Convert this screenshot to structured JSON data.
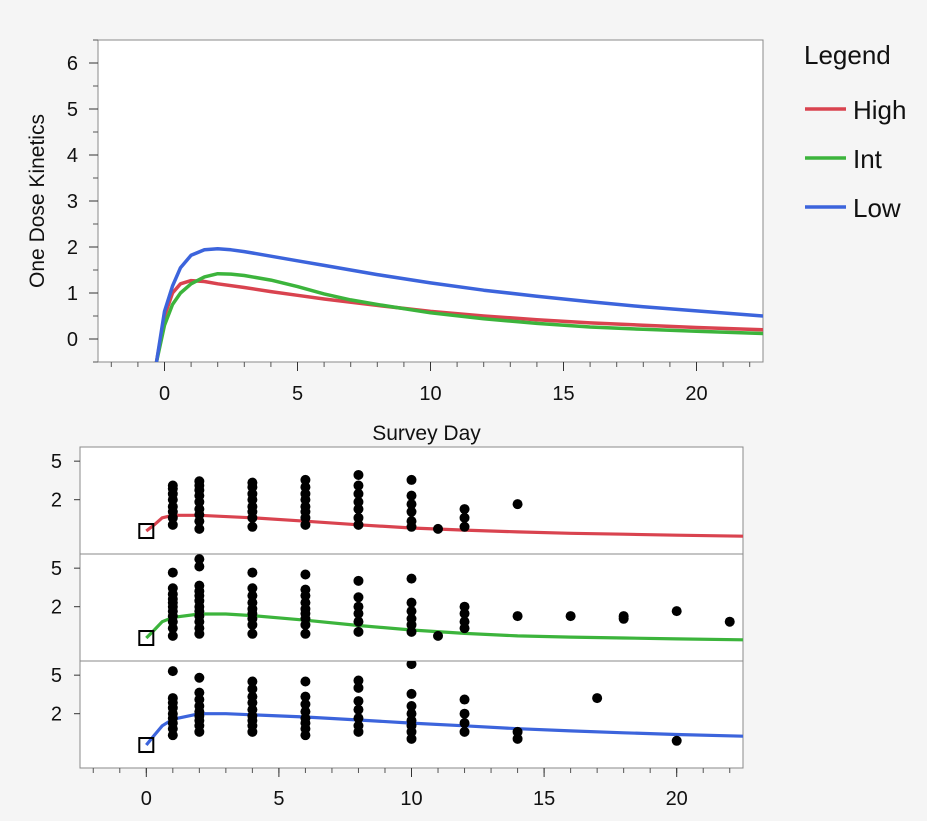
{
  "colors": {
    "High": "#d9434f",
    "Int": "#3cb43c",
    "Low": "#3c64dc",
    "background": "#f5f5f5",
    "plot": "#ffffff"
  },
  "chart_data": [
    {
      "type": "line",
      "xlabel": "Survey Day",
      "ylabel": "One Dose Kinetics",
      "xlim": [
        -2.5,
        22.5
      ],
      "ylim": [
        -0.5,
        6.5
      ],
      "xticks": [
        "0",
        "5",
        "10",
        "15",
        "20"
      ],
      "yticks": [
        "0",
        "1",
        "2",
        "3",
        "4",
        "5",
        "6"
      ],
      "legend": {
        "title": "Legend",
        "position": "right"
      },
      "series": [
        {
          "name": "High",
          "color_key": "High",
          "x": [
            -0.3,
            0,
            0.3,
            0.6,
            1,
            1.5,
            2,
            3,
            4,
            5,
            6,
            8,
            10,
            12,
            14,
            16,
            18,
            20,
            22.5
          ],
          "y": [
            -0.5,
            0.5,
            1.0,
            1.2,
            1.27,
            1.25,
            1.2,
            1.12,
            1.03,
            0.95,
            0.87,
            0.73,
            0.6,
            0.5,
            0.42,
            0.35,
            0.3,
            0.25,
            0.2
          ]
        },
        {
          "name": "Int",
          "color_key": "Int",
          "x": [
            -0.3,
            0,
            0.3,
            0.6,
            1,
            1.5,
            2,
            2.5,
            3,
            4,
            5,
            6,
            7,
            8,
            10,
            12,
            14,
            16,
            18,
            20,
            22.5
          ],
          "y": [
            -0.5,
            0.3,
            0.75,
            1.0,
            1.2,
            1.35,
            1.42,
            1.41,
            1.38,
            1.28,
            1.14,
            0.98,
            0.85,
            0.75,
            0.57,
            0.44,
            0.34,
            0.26,
            0.21,
            0.17,
            0.12
          ]
        },
        {
          "name": "Low",
          "color_key": "Low",
          "x": [
            -0.3,
            0,
            0.3,
            0.6,
            1,
            1.5,
            2,
            2.5,
            3,
            4,
            5,
            6,
            8,
            10,
            12,
            14,
            16,
            18,
            20,
            22.5
          ],
          "y": [
            -0.5,
            0.6,
            1.15,
            1.55,
            1.82,
            1.94,
            1.96,
            1.94,
            1.9,
            1.8,
            1.7,
            1.6,
            1.4,
            1.22,
            1.06,
            0.93,
            0.81,
            0.7,
            0.61,
            0.5
          ]
        }
      ]
    },
    {
      "type": "scatter",
      "xlim": [
        -2.5,
        22.5
      ],
      "ylim_log": [
        0.55,
        7
      ],
      "xticks": [
        "0",
        "5",
        "10",
        "15",
        "20"
      ],
      "yticks": [
        "5",
        "2"
      ],
      "panels": [
        {
          "series": "High",
          "color_key": "High",
          "curve": {
            "x": [
              0,
              0.3,
              0.6,
              1,
              2,
              4,
              6,
              8,
              10,
              12,
              14,
              16,
              18,
              20,
              22.5
            ],
            "y": [
              0.95,
              1.1,
              1.3,
              1.38,
              1.38,
              1.3,
              1.2,
              1.1,
              1.02,
              0.97,
              0.93,
              0.9,
              0.88,
              0.86,
              0.84
            ]
          },
          "points": {
            "x": [
              1,
              1,
              1,
              1,
              1,
              1,
              1,
              1,
              2,
              2,
              2,
              2,
              2,
              2,
              2,
              2,
              2,
              4,
              4,
              4,
              4,
              4,
              4,
              4,
              4,
              6,
              6,
              6,
              6,
              6,
              6,
              6,
              6,
              8,
              8,
              8,
              8,
              8,
              8,
              8,
              10,
              10,
              10,
              10,
              10,
              10,
              11,
              12,
              12,
              12,
              14
            ],
            "y": [
              2.8,
              2.6,
              2.3,
              2.0,
              1.7,
              1.5,
              1.3,
              1.1,
              3.1,
              2.8,
              2.5,
              2.2,
              1.9,
              1.6,
              1.4,
              1.2,
              1.0,
              3.0,
              2.7,
              2.3,
              2.0,
              1.7,
              1.5,
              1.3,
              1.05,
              3.2,
              2.7,
              2.3,
              2.0,
              1.7,
              1.5,
              1.3,
              1.1,
              3.6,
              2.8,
              2.3,
              1.9,
              1.6,
              1.3,
              1.1,
              3.2,
              2.2,
              1.8,
              1.5,
              1.2,
              1.05,
              1.0,
              1.6,
              1.3,
              1.05,
              1.8
            ]
          }
        },
        {
          "series": "Int",
          "color_key": "Int",
          "curve": {
            "x": [
              0,
              0.3,
              0.6,
              1,
              2,
              3,
              4,
              6,
              8,
              10,
              12,
              14,
              16,
              18,
              20,
              22.5
            ],
            "y": [
              0.95,
              1.15,
              1.4,
              1.55,
              1.68,
              1.68,
              1.62,
              1.45,
              1.28,
              1.15,
              1.06,
              1.0,
              0.97,
              0.95,
              0.93,
              0.91
            ]
          },
          "points": {
            "x": [
              1,
              1,
              1,
              1,
              1,
              1,
              1,
              1,
              1,
              1,
              1,
              2,
              2,
              2,
              2,
              2,
              2,
              2,
              2,
              2,
              2,
              2,
              2,
              4,
              4,
              4,
              4,
              4,
              4,
              4,
              4,
              4,
              6,
              6,
              6,
              6,
              6,
              6,
              6,
              6,
              6,
              8,
              8,
              8,
              8,
              8,
              8,
              10,
              10,
              10,
              10,
              10,
              10,
              11,
              12,
              12,
              12,
              12,
              14,
              16,
              18,
              18,
              20,
              22
            ],
            "y": [
              4.5,
              3.1,
              2.7,
              2.4,
              2.2,
              2.0,
              1.8,
              1.6,
              1.4,
              1.2,
              1.0,
              6.2,
              5.2,
              3.3,
              2.9,
              2.6,
              2.3,
              2.0,
              1.8,
              1.6,
              1.4,
              1.2,
              1.05,
              4.5,
              3.1,
              2.6,
              2.2,
              1.9,
              1.7,
              1.5,
              1.3,
              1.05,
              4.3,
              3.0,
              2.6,
              2.2,
              1.9,
              1.7,
              1.5,
              1.3,
              1.05,
              3.7,
              2.5,
              2.0,
              1.7,
              1.4,
              1.1,
              3.9,
              2.2,
              1.8,
              1.5,
              1.3,
              1.1,
              1.0,
              2.0,
              1.7,
              1.4,
              1.2,
              1.6,
              1.6,
              1.6,
              1.5,
              1.8,
              1.4
            ]
          }
        },
        {
          "series": "Low",
          "color_key": "Low",
          "curve": {
            "x": [
              0,
              0.3,
              0.6,
              1,
              2,
              3,
              4,
              6,
              8,
              10,
              12,
              14,
              16,
              18,
              20,
              22.5
            ],
            "y": [
              0.95,
              1.2,
              1.5,
              1.75,
              2.0,
              2.0,
              1.95,
              1.85,
              1.72,
              1.6,
              1.5,
              1.4,
              1.33,
              1.27,
              1.22,
              1.17
            ]
          },
          "points": {
            "x": [
              1,
              1,
              1,
              1,
              1,
              1,
              1,
              1,
              1,
              2,
              2,
              2,
              2,
              2,
              2,
              2,
              2,
              2,
              4,
              4,
              4,
              4,
              4,
              4,
              4,
              4,
              4,
              6,
              6,
              6,
              6,
              6,
              6,
              6,
              6,
              8,
              8,
              8,
              8,
              8,
              8,
              8,
              10,
              10,
              10,
              10,
              10,
              10,
              10,
              10,
              12,
              12,
              12,
              12,
              14,
              14,
              17,
              20
            ],
            "y": [
              5.5,
              2.9,
              2.6,
              2.3,
              2.0,
              1.8,
              1.6,
              1.4,
              1.2,
              4.7,
              3.3,
              2.8,
              2.4,
              2.1,
              1.9,
              1.7,
              1.5,
              1.3,
              4.3,
              3.6,
              3.0,
              2.6,
              2.2,
              1.9,
              1.7,
              1.5,
              1.3,
              4.3,
              3.0,
              2.5,
              2.1,
              1.8,
              1.6,
              1.4,
              1.2,
              4.4,
              3.7,
              2.7,
              2.2,
              1.8,
              1.5,
              1.3,
              3.2,
              2.4,
              2.0,
              1.7,
              1.5,
              1.3,
              1.1,
              6.5,
              2.8,
              2.0,
              1.6,
              1.3,
              1.3,
              1.1,
              2.9,
              1.05
            ]
          }
        }
      ]
    }
  ]
}
